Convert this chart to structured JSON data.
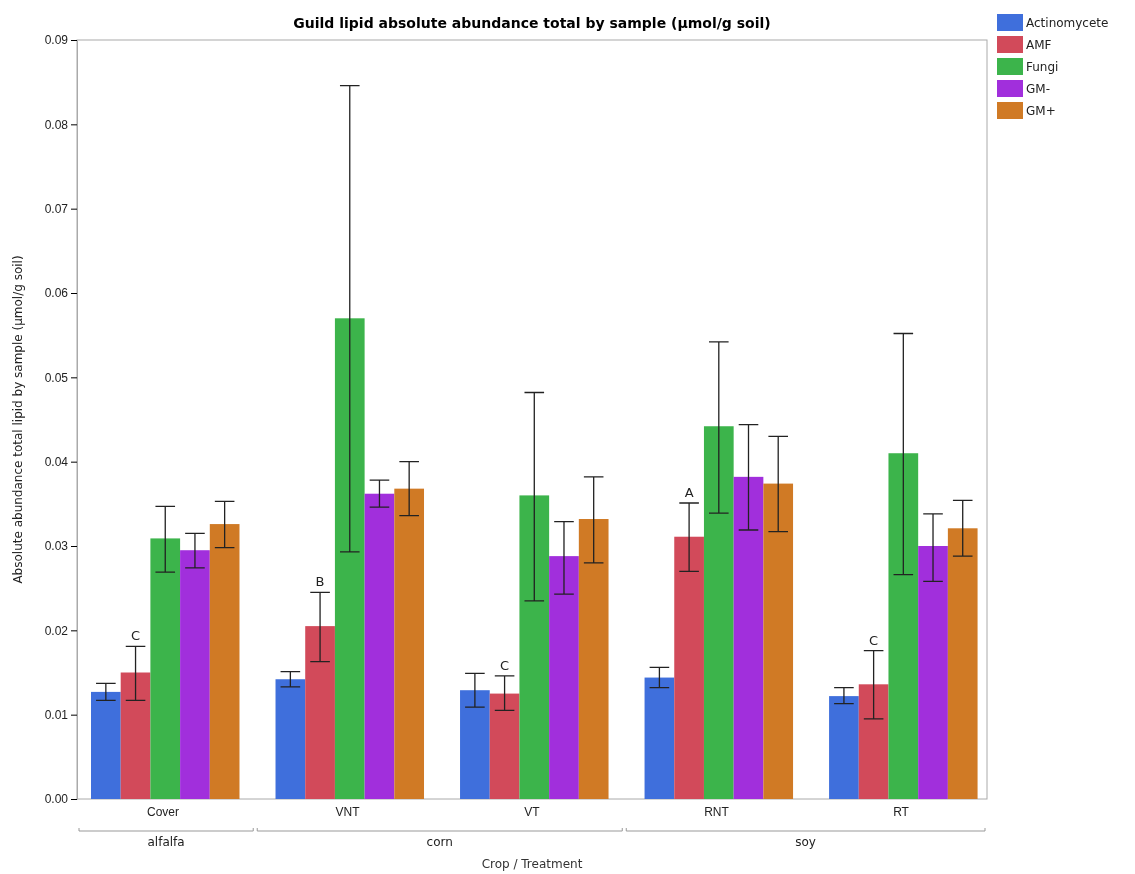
{
  "chart_data": {
    "type": "bar",
    "title": "Guild lipid absolute abundance total by sample (µmol/g soil)",
    "xlabel": "Crop / Treatment",
    "ylabel": "Absolute abundance total lipid by sample (µmol/g soil)",
    "categories": [
      "Cover",
      "VNT",
      "VT",
      "RNT",
      "RT"
    ],
    "series": [
      {
        "name": "Actinomycete",
        "color": "#3f6fdc",
        "values": [
          0.0127,
          0.0142,
          0.0129,
          0.0144,
          0.0122
        ],
        "errors": [
          [
            0.0117,
            0.0137
          ],
          [
            0.0133,
            0.0151
          ],
          [
            0.0109,
            0.0149
          ],
          [
            0.0132,
            0.0156
          ],
          [
            0.0113,
            0.0132
          ]
        ]
      },
      {
        "name": "AMF",
        "color": "#d24a5a",
        "values": [
          0.015,
          0.0205,
          0.0125,
          0.0311,
          0.0136
        ],
        "errors": [
          [
            0.0117,
            0.0181
          ],
          [
            0.0163,
            0.0245
          ],
          [
            0.0105,
            0.0146
          ],
          [
            0.027,
            0.0351
          ],
          [
            0.0095,
            0.0176
          ]
        ]
      },
      {
        "name": "Fungi",
        "color": "#3cb44b",
        "values": [
          0.0309,
          0.057,
          0.036,
          0.0442,
          0.041
        ],
        "errors": [
          [
            0.0269,
            0.0347
          ],
          [
            0.0293,
            0.0846
          ],
          [
            0.0235,
            0.0482
          ],
          [
            0.0339,
            0.0542
          ],
          [
            0.0266,
            0.0552
          ]
        ]
      },
      {
        "name": "GM-",
        "color": "#a12fdc",
        "values": [
          0.0295,
          0.0362,
          0.0288,
          0.0382,
          0.03
        ],
        "errors": [
          [
            0.0274,
            0.0315
          ],
          [
            0.0346,
            0.0378
          ],
          [
            0.0243,
            0.0329
          ],
          [
            0.0319,
            0.0444
          ],
          [
            0.0258,
            0.0338
          ]
        ]
      },
      {
        "name": "GM+",
        "color": "#d07a25",
        "values": [
          0.0326,
          0.0368,
          0.0332,
          0.0374,
          0.0321
        ],
        "errors": [
          [
            0.0298,
            0.0353
          ],
          [
            0.0336,
            0.04
          ],
          [
            0.028,
            0.0382
          ],
          [
            0.0317,
            0.043
          ],
          [
            0.0288,
            0.0354
          ]
        ]
      }
    ],
    "ylim": [
      0,
      0.09
    ],
    "yticks": [
      {
        "value": 0,
        "label": "0.00"
      },
      {
        "value": 0.01,
        "label": "0.01"
      },
      {
        "value": 0.02,
        "label": "0.02"
      },
      {
        "value": 0.03,
        "label": "0.03"
      },
      {
        "value": 0.04,
        "label": "0.04"
      },
      {
        "value": 0.05,
        "label": "0.05"
      },
      {
        "value": 0.06,
        "label": "0.06"
      },
      {
        "value": 0.07,
        "label": "0.07"
      },
      {
        "value": 0.08,
        "label": "0.08"
      },
      {
        "value": 0.09,
        "label": "0.09"
      }
    ],
    "grid": false,
    "legend": "top right",
    "annotations": [
      "C",
      "B",
      "C",
      "A",
      "C",
      "alfalfa",
      "corn",
      "soy"
    ]
  }
}
